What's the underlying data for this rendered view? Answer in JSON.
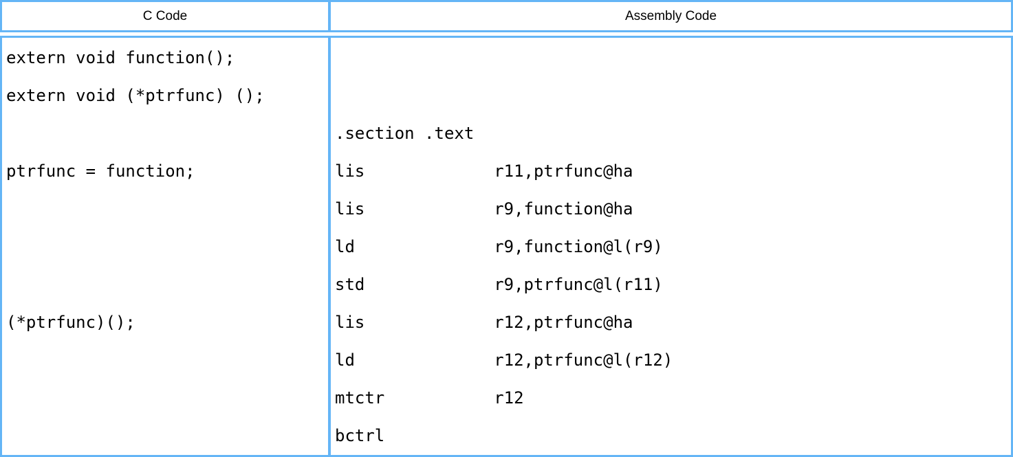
{
  "table": {
    "headers": {
      "c": "C Code",
      "assembly": "Assembly Code"
    },
    "rows": [
      {
        "c": "extern void function();",
        "asm": ""
      },
      {
        "c": "extern void (*ptrfunc) ();",
        "asm": ""
      },
      {
        "c": "",
        "asm": ".section .text"
      },
      {
        "c": "ptrfunc = function;",
        "asm": "lis             r11,ptrfunc@ha"
      },
      {
        "c": "",
        "asm": "lis             r9,function@ha"
      },
      {
        "c": "",
        "asm": "ld              r9,function@l(r9)"
      },
      {
        "c": "",
        "asm": "std             r9,ptrfunc@l(r11)"
      },
      {
        "c": "(*ptrfunc)();",
        "asm": "lis             r12,ptrfunc@ha"
      },
      {
        "c": "",
        "asm": "ld              r12,ptrfunc@l(r12)"
      },
      {
        "c": "",
        "asm": "mtctr           r12"
      },
      {
        "c": "",
        "asm": "bctrl"
      }
    ]
  },
  "colors": {
    "border": "#64b5f6",
    "background": "#ffffff",
    "text": "#000000"
  }
}
